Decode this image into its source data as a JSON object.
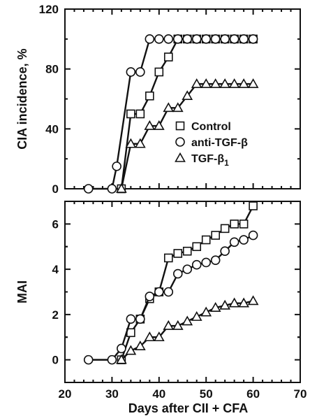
{
  "chart_data": [
    {
      "type": "line",
      "ylabel": "CIA incidence, %",
      "ylim": [
        0,
        120
      ],
      "yticks": [
        0,
        40,
        80,
        120
      ],
      "xlim": [
        20,
        70
      ],
      "grid": false,
      "legend_placement": "right-center",
      "series": [
        {
          "name": "Control",
          "marker": "square",
          "x": [
            32,
            34,
            36,
            38,
            40,
            42,
            44,
            46,
            48,
            50,
            52,
            54,
            56,
            58,
            60
          ],
          "y": [
            0,
            50,
            50,
            62,
            78,
            88,
            100,
            100,
            100,
            100,
            100,
            100,
            100,
            100,
            100
          ]
        },
        {
          "name": "anti-TGF-β",
          "marker": "circle",
          "x": [
            25,
            30,
            31,
            34,
            36,
            38,
            40,
            42,
            44,
            46,
            48,
            50,
            52,
            54,
            56,
            58,
            60
          ],
          "y": [
            0,
            0,
            15,
            78,
            78,
            100,
            100,
            100,
            100,
            100,
            100,
            100,
            100,
            100,
            100,
            100,
            100
          ]
        },
        {
          "name": "TGF-β1",
          "marker": "triangle",
          "x": [
            32,
            34,
            36,
            38,
            40,
            42,
            44,
            46,
            48,
            50,
            52,
            54,
            56,
            58,
            60
          ],
          "y": [
            0,
            30,
            30,
            42,
            42,
            54,
            54,
            62,
            70,
            70,
            70,
            70,
            70,
            70,
            70
          ]
        }
      ]
    },
    {
      "type": "line",
      "xlabel": "Days after CII + CFA",
      "ylabel": "MAI",
      "ylim": [
        -1,
        7
      ],
      "yticks": [
        0,
        2,
        4,
        6
      ],
      "xlim": [
        20,
        70
      ],
      "xticks": [
        20,
        30,
        40,
        50,
        60,
        70
      ],
      "grid": false,
      "series": [
        {
          "name": "Control",
          "marker": "square",
          "x": [
            32,
            34,
            36,
            38,
            40,
            42,
            44,
            46,
            48,
            50,
            52,
            54,
            56,
            58,
            60
          ],
          "y": [
            0,
            1.2,
            1.8,
            2.7,
            3.0,
            4.5,
            4.7,
            4.8,
            5.0,
            5.3,
            5.5,
            5.8,
            6.0,
            6.0,
            6.8
          ]
        },
        {
          "name": "anti-TGF-β",
          "marker": "circle",
          "x": [
            25,
            30,
            32,
            34,
            36,
            38,
            40,
            42,
            44,
            46,
            48,
            50,
            52,
            54,
            56,
            58,
            60
          ],
          "y": [
            0,
            0,
            0.5,
            1.8,
            1.8,
            2.8,
            3.0,
            3.0,
            3.8,
            4.0,
            4.2,
            4.3,
            4.4,
            4.8,
            5.2,
            5.3,
            5.5
          ]
        },
        {
          "name": "TGF-β1",
          "marker": "triangle",
          "x": [
            32,
            34,
            36,
            38,
            40,
            42,
            44,
            46,
            48,
            50,
            52,
            54,
            56,
            58,
            60
          ],
          "y": [
            0,
            0.4,
            0.6,
            1.0,
            1.0,
            1.5,
            1.5,
            1.7,
            1.9,
            2.1,
            2.3,
            2.4,
            2.5,
            2.5,
            2.6
          ]
        }
      ]
    }
  ]
}
